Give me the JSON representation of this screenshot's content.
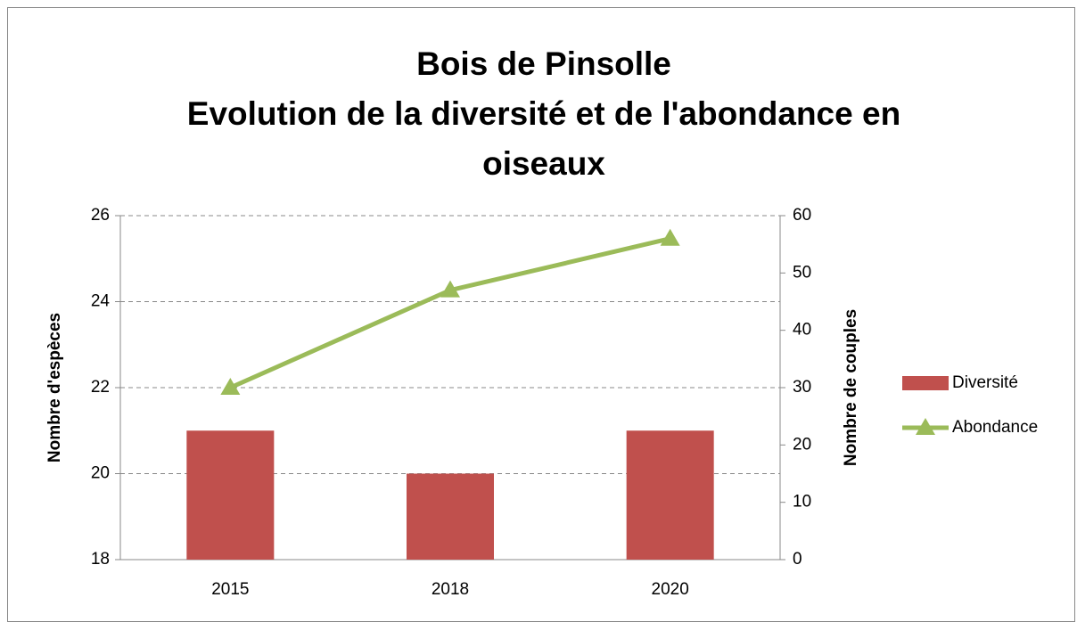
{
  "chart_data": {
    "type": "bar_line",
    "title": "Bois de Pinsolle",
    "subtitle": "Evolution de la diversité et de l'abondance en oiseaux",
    "ylabel": "Nombre d'espèces",
    "y2label": "Nombre de couples",
    "categories": [
      "2015",
      "2018",
      "2020"
    ],
    "series": [
      {
        "name": "Diversité",
        "type": "bar",
        "color": "#c0504d",
        "values": [
          21,
          20,
          21
        ]
      },
      {
        "name": "Abondance",
        "type": "line",
        "color": "#9bbb59",
        "axis": "y2",
        "values": [
          30,
          47,
          56
        ]
      }
    ],
    "ylim": [
      18,
      26
    ],
    "yticks": [
      18,
      20,
      22,
      24,
      26
    ],
    "y2lim": [
      0,
      60
    ],
    "y2ticks": [
      0,
      10,
      20,
      30,
      40,
      50,
      60
    ],
    "grid": true,
    "legend": "right"
  }
}
